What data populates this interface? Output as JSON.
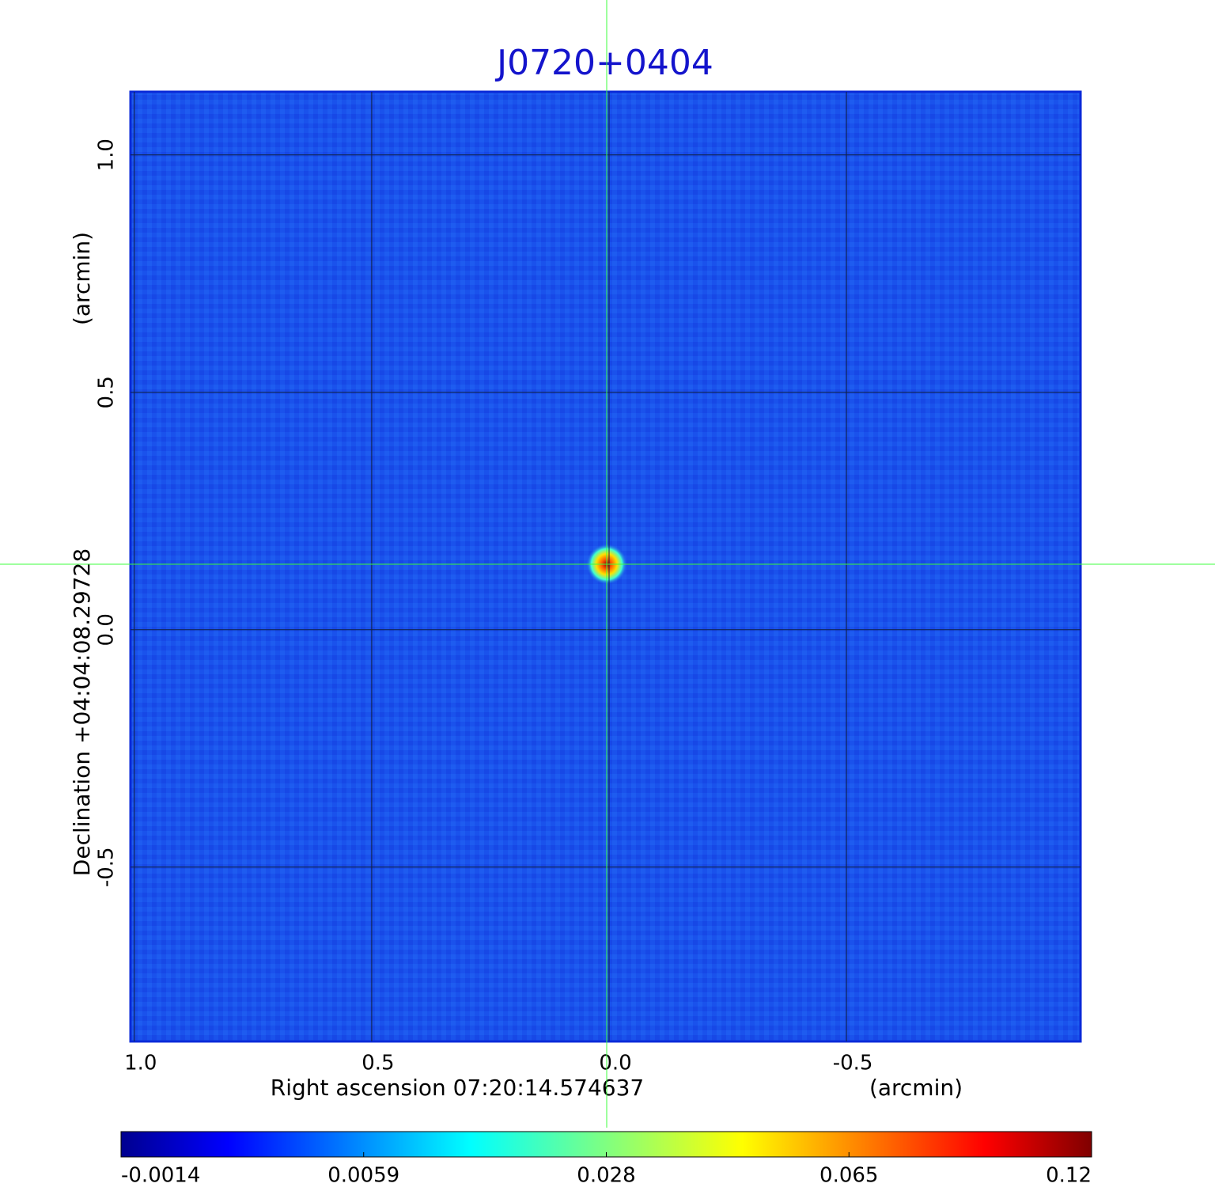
{
  "chart_data": {
    "type": "image",
    "title": "J0720+0404",
    "xlabel": "Right ascension  07:20:14.574637",
    "xunit": "(arcmin)",
    "ylabel": "Declination  +04:04:08.29728",
    "yunit": "(arcmin)",
    "xlim": [
      1.008,
      -0.993
    ],
    "ylim": [
      -0.867,
      1.133
    ],
    "xticks": [
      {
        "value": 1,
        "label": "1.0"
      },
      {
        "value": 0.5,
        "label": "0.5"
      },
      {
        "value": 0,
        "label": "0.0"
      },
      {
        "value": -0.5,
        "label": "-0.5"
      }
    ],
    "yticks": [
      {
        "value": 1,
        "label": "1.0"
      },
      {
        "value": 0.5,
        "label": "0.5"
      },
      {
        "value": 0,
        "label": "0.0"
      },
      {
        "value": -0.5,
        "label": "-0.5"
      }
    ],
    "grid": true,
    "crosshair": {
      "x": 0.005,
      "y": 0.138
    },
    "colorbar_ticks": [
      -0.0014,
      0.0059,
      0.028,
      0.065,
      0.12
    ]
  }
}
